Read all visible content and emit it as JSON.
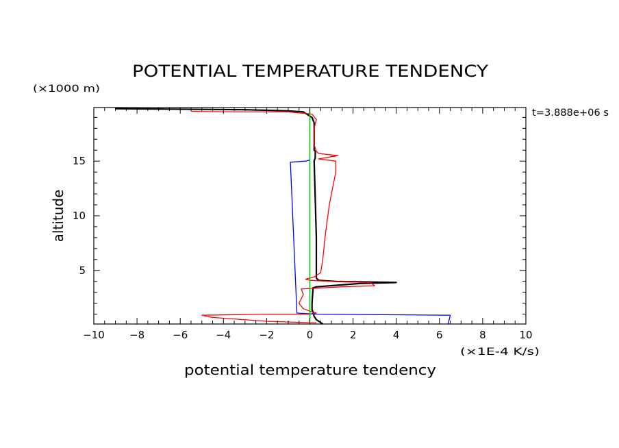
{
  "chart_data": {
    "type": "line",
    "title": "POTENTIAL TEMPERATURE TENDENCY",
    "xlabel": "potential temperature tendency",
    "ylabel": "altitude",
    "x_unit": "(×1E-4 K/s)",
    "y_unit": "(×1000 m)",
    "time_label": "t=3.888e+06 s",
    "xlim": [
      -10,
      10
    ],
    "ylim": [
      0.1,
      19.9
    ],
    "x_ticks": [
      -10,
      -8,
      -6,
      -4,
      -2,
      0,
      2,
      4,
      6,
      8,
      10
    ],
    "x_tick_labels": [
      "−10",
      "−8",
      "−6",
      "−4",
      "−2",
      "0",
      "2",
      "4",
      "6",
      "8",
      "10"
    ],
    "y_ticks": [
      5,
      10,
      15
    ],
    "y_tick_labels": [
      "5",
      "10",
      "15"
    ],
    "grid": false,
    "series": [
      {
        "color": "#000000",
        "stroke_width": 2.2,
        "points": [
          [
            0.6,
            0.1
          ],
          [
            0.3,
            0.5
          ],
          [
            0.2,
            0.8
          ],
          [
            0.15,
            1.2
          ],
          [
            0.1,
            1.4
          ],
          [
            0.1,
            2
          ],
          [
            0.15,
            3.4
          ],
          [
            0.3,
            3.5
          ],
          [
            2.3,
            3.8
          ],
          [
            4.0,
            3.9
          ],
          [
            1.2,
            4.0
          ],
          [
            0.4,
            4.1
          ],
          [
            0.3,
            4.3
          ],
          [
            0.3,
            8
          ],
          [
            0.2,
            15
          ],
          [
            0.25,
            15.3
          ],
          [
            0.25,
            15.9
          ],
          [
            0.2,
            16.0
          ],
          [
            0.2,
            18.5
          ],
          [
            0.1,
            19.0
          ],
          [
            -0.3,
            19.5
          ],
          [
            -1,
            19.6
          ],
          [
            -3,
            19.7
          ],
          [
            -9,
            19.8
          ]
        ]
      },
      {
        "color": "#ff0000",
        "stroke_width": 1.3,
        "points": [
          [
            0.3,
            0.2
          ],
          [
            -2.0,
            0.35
          ],
          [
            -4.5,
            0.7
          ],
          [
            -5.0,
            0.9
          ],
          [
            -2.0,
            1.0
          ],
          [
            0.0,
            1.0
          ],
          [
            0.3,
            1.1
          ],
          [
            0.1,
            1.2
          ],
          [
            -0.3,
            1.5
          ],
          [
            -0.5,
            2.0
          ],
          [
            -0.3,
            2.8
          ],
          [
            -0.4,
            3.3
          ],
          [
            1.5,
            3.5
          ],
          [
            3.0,
            3.6
          ],
          [
            2.8,
            3.9
          ],
          [
            1.0,
            4.0
          ],
          [
            0.0,
            4.1
          ],
          [
            -0.2,
            4.2
          ],
          [
            0.2,
            4.4
          ],
          [
            0.5,
            4.8
          ],
          [
            0.6,
            6
          ],
          [
            0.7,
            8
          ],
          [
            0.9,
            11
          ],
          [
            1.1,
            13
          ],
          [
            1.2,
            14
          ],
          [
            1.2,
            15.0
          ],
          [
            0.4,
            15.2
          ],
          [
            1.3,
            15.5
          ],
          [
            0.4,
            15.7
          ],
          [
            0.3,
            15.9
          ],
          [
            0.2,
            16.5
          ],
          [
            0.2,
            18.0
          ],
          [
            0.3,
            18.8
          ],
          [
            0.1,
            19.3
          ],
          [
            -1.0,
            19.5
          ],
          [
            -3.0,
            19.5
          ],
          [
            -5.5,
            19.55
          ]
        ]
      },
      {
        "color": "#0000ff",
        "stroke_width": 1.3,
        "points": [
          [
            6.4,
            0.1
          ],
          [
            6.5,
            0.9
          ],
          [
            0.3,
            1.0
          ],
          [
            -0.6,
            1.1
          ],
          [
            -0.9,
            14.9
          ],
          [
            -0.2,
            15.0
          ],
          [
            0.0,
            15.1
          ]
        ]
      },
      {
        "color": "#00cc00",
        "stroke_width": 1.6,
        "points": [
          [
            0.0,
            0.1
          ],
          [
            0.0,
            19.9
          ]
        ]
      }
    ]
  }
}
